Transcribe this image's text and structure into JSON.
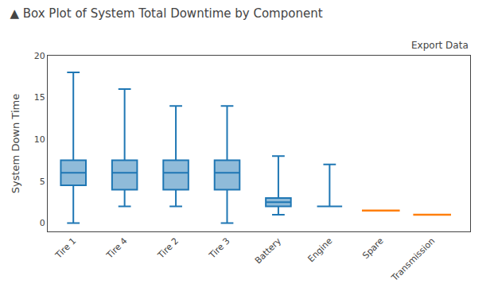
{
  "chart_data": {
    "type": "box",
    "title": "▲ Box Plot of System Total Downtime by Component",
    "ylabel": "System Down Time",
    "categories": [
      "Tire 1",
      "Tire 4",
      "Tire 2",
      "Tire 3",
      "Battery",
      "Engine",
      "Spare",
      "Transmission"
    ],
    "whisker_low": [
      0.0,
      2.0,
      2.0,
      0.0,
      1.0,
      2.0,
      null,
      null
    ],
    "q1": [
      4.5,
      4.0,
      4.0,
      4.0,
      2.0,
      2.0,
      null,
      null
    ],
    "median": [
      6.0,
      6.0,
      6.0,
      6.0,
      2.5,
      2.0,
      1.5,
      1.0
    ],
    "q3": [
      7.5,
      7.5,
      7.5,
      7.5,
      3.0,
      2.0,
      null,
      null
    ],
    "whisker_high": [
      18.0,
      16.0,
      14.0,
      14.0,
      8.0,
      7.0,
      null,
      null
    ],
    "ylim": [
      -1,
      20
    ],
    "yticks": [
      0,
      5,
      10,
      15,
      20
    ],
    "grid": false,
    "annotations": [
      "Export Data"
    ]
  }
}
